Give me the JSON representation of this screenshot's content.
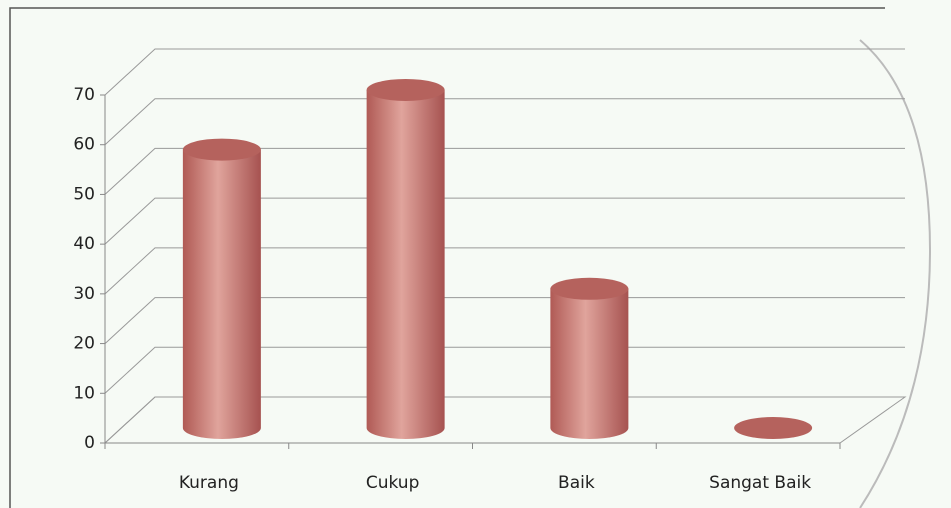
{
  "chart_data": {
    "type": "bar",
    "categories": [
      "Kurang",
      "Cukup",
      "Baik",
      "Sangat Baik"
    ],
    "values": [
      56,
      68,
      28,
      0
    ],
    "color": "#c0706a",
    "ylim": [
      0,
      70
    ],
    "yticks": [
      0,
      10,
      20,
      30,
      40,
      50,
      60,
      70
    ],
    "grid": true
  }
}
